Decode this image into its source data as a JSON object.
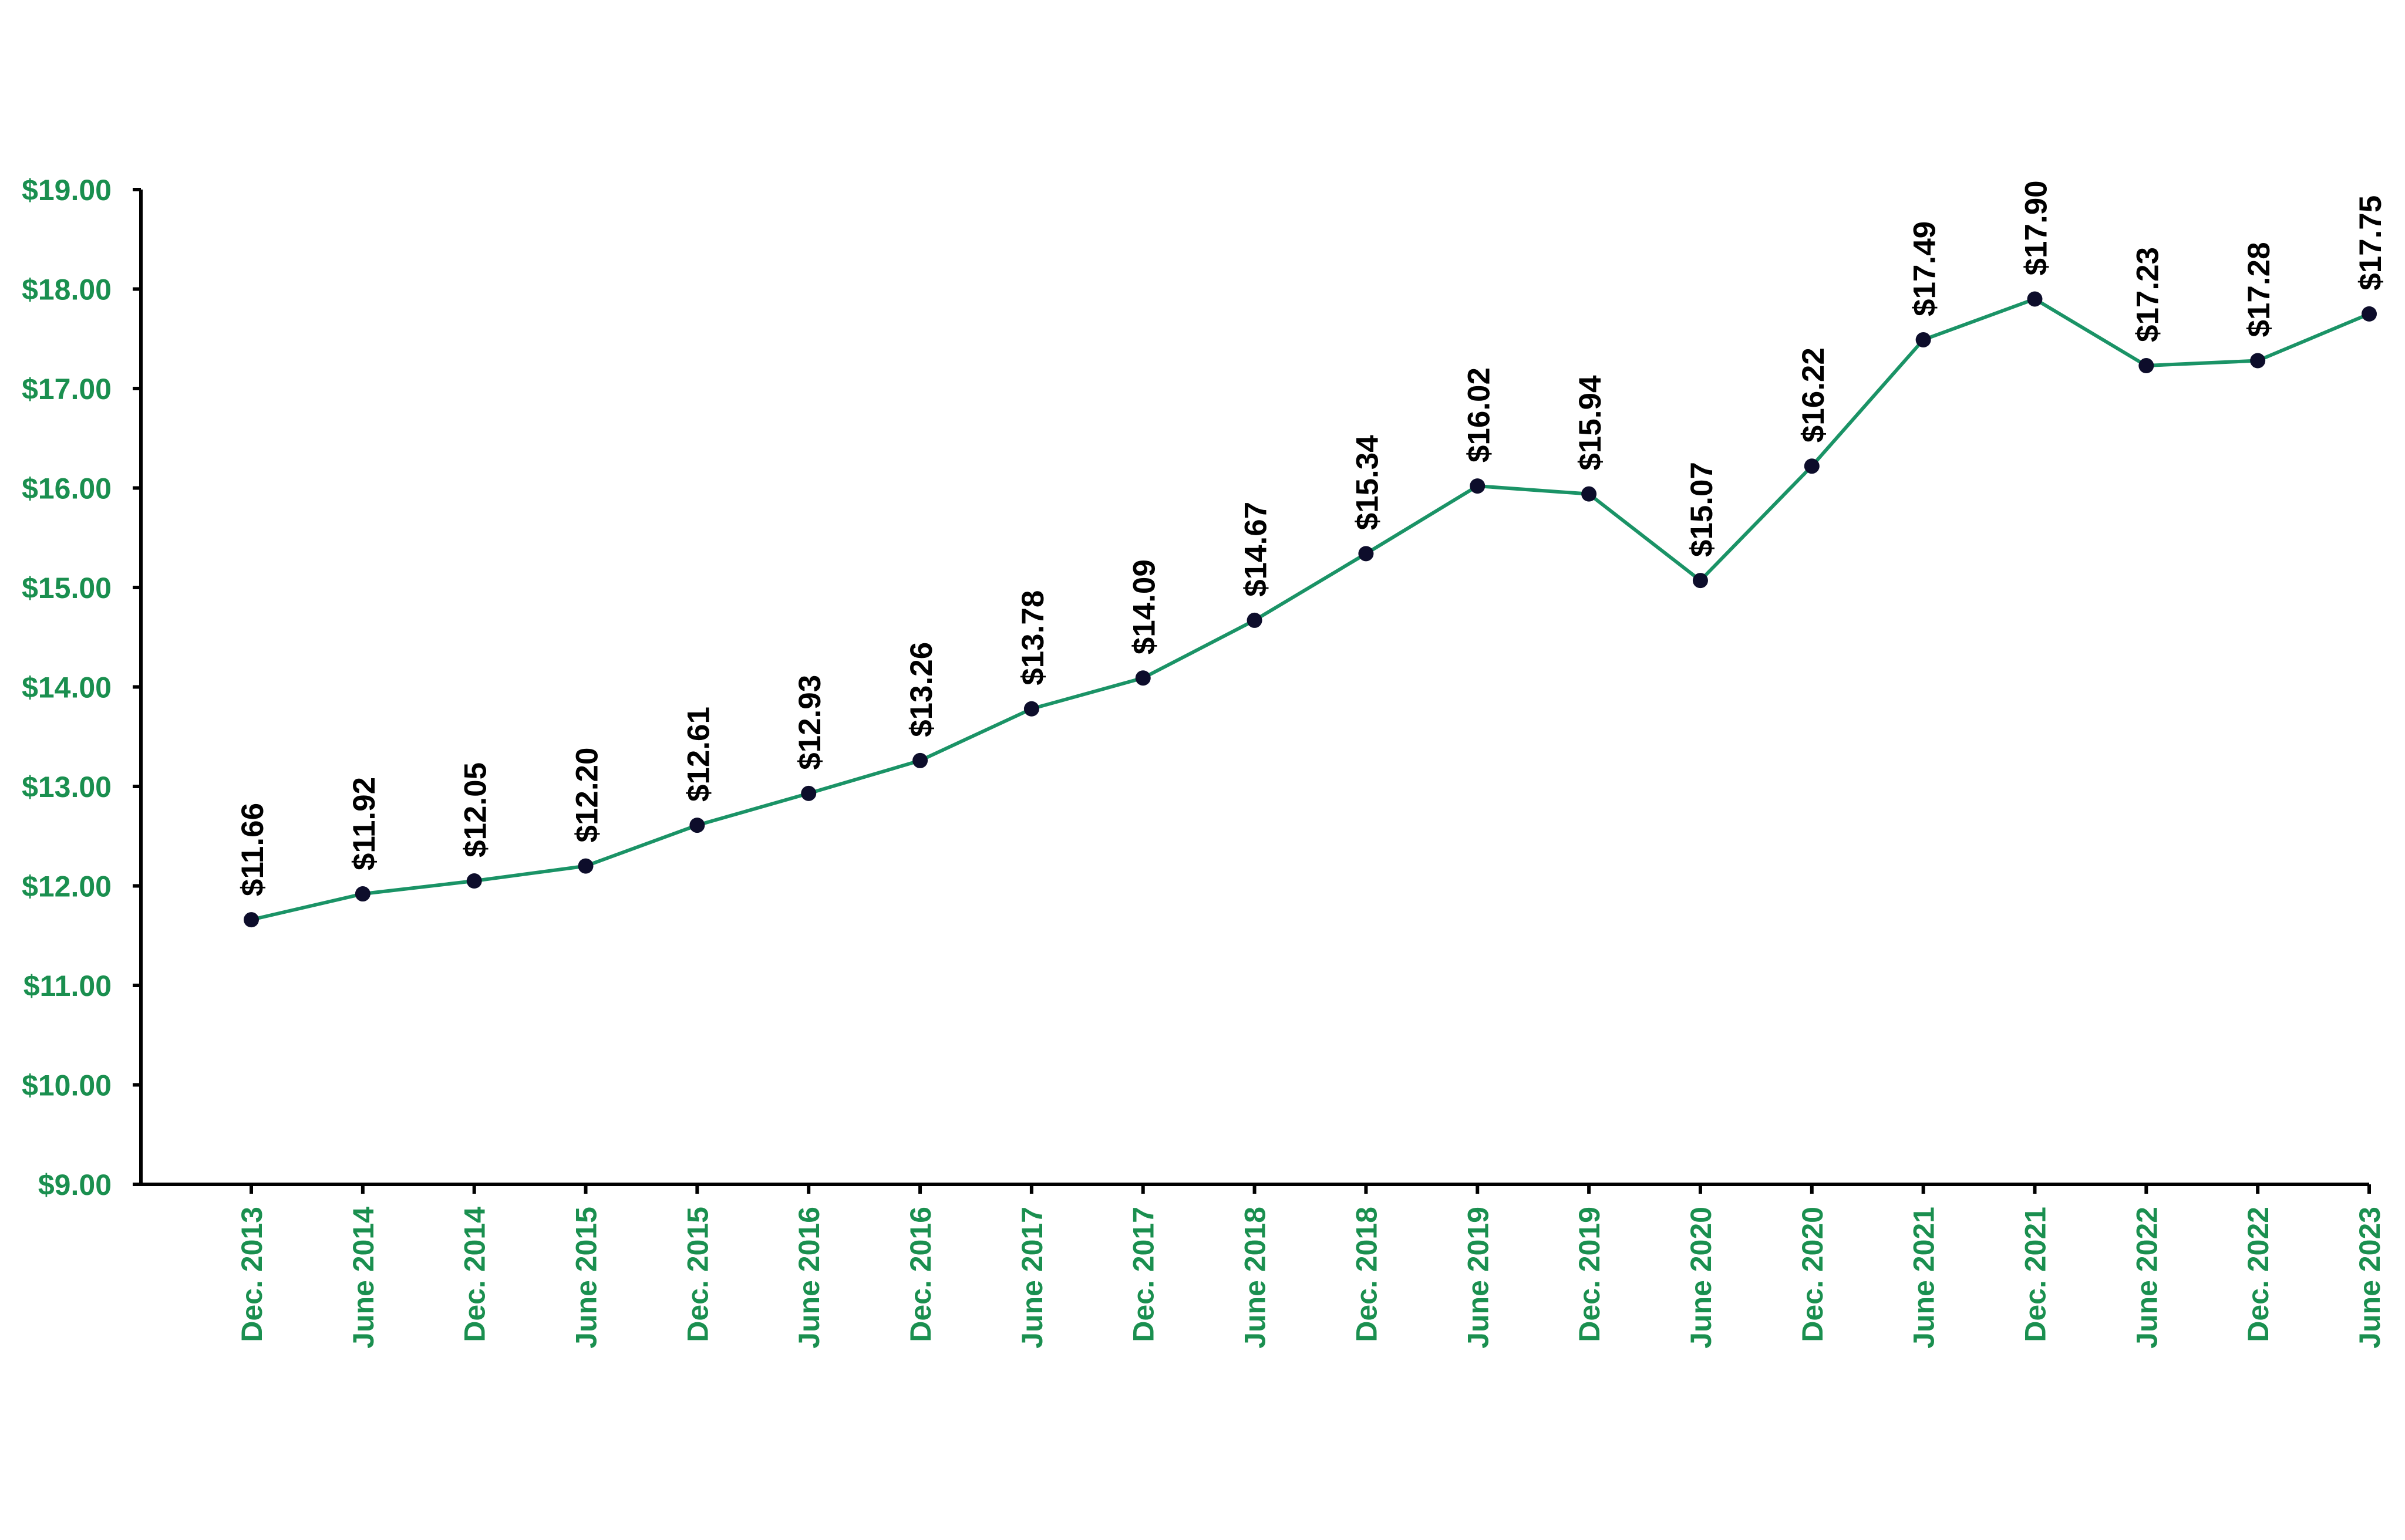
{
  "chart_data": {
    "type": "line",
    "categories": [
      "Dec. 2013",
      "June 2014",
      "Dec. 2014",
      "June 2015",
      "Dec. 2015",
      "June 2016",
      "Dec. 2016",
      "June 2017",
      "Dec. 2017",
      "June 2018",
      "Dec. 2018",
      "June 2019",
      "Dec. 2019",
      "June 2020",
      "Dec. 2020",
      "June 2021",
      "Dec. 2021",
      "June 2022",
      "Dec. 2022",
      "June 2023"
    ],
    "series": [
      {
        "values": [
          11.66,
          11.92,
          12.05,
          12.2,
          12.61,
          12.93,
          13.26,
          13.78,
          14.09,
          14.67,
          15.34,
          16.02,
          15.94,
          15.07,
          16.22,
          17.49,
          17.9,
          17.23,
          17.28,
          17.75
        ],
        "labels": [
          "$11.66",
          "$11.92",
          "$12.05",
          "$12.20",
          "$12.61",
          "$12.93",
          "$13.26",
          "$13.78",
          "$14.09",
          "$14.67",
          "$15.34",
          "$16.02",
          "$15.94",
          "$15.07",
          "$16.22",
          "$17.49",
          "$17.90",
          "$17.23",
          "$17.28",
          "$17.75"
        ]
      }
    ],
    "yticks": [
      9,
      10,
      11,
      12,
      13,
      14,
      15,
      16,
      17,
      18,
      19
    ],
    "ytick_labels": [
      "$9.00",
      "$10.00",
      "$11.00",
      "$12.00",
      "$13.00",
      "$14.00",
      "$15.00",
      "$16.00",
      "$17.00",
      "$18.00",
      "$19.00"
    ],
    "ylim": [
      9,
      19
    ],
    "title": "",
    "xlabel": "",
    "ylabel": "",
    "grid": false,
    "legend": "none",
    "colors": {
      "line": "#1a9366",
      "marker": "#0d0d2b",
      "tick_label": "#1a8f4f",
      "axis": "#000000",
      "data_label": "#000000"
    }
  }
}
